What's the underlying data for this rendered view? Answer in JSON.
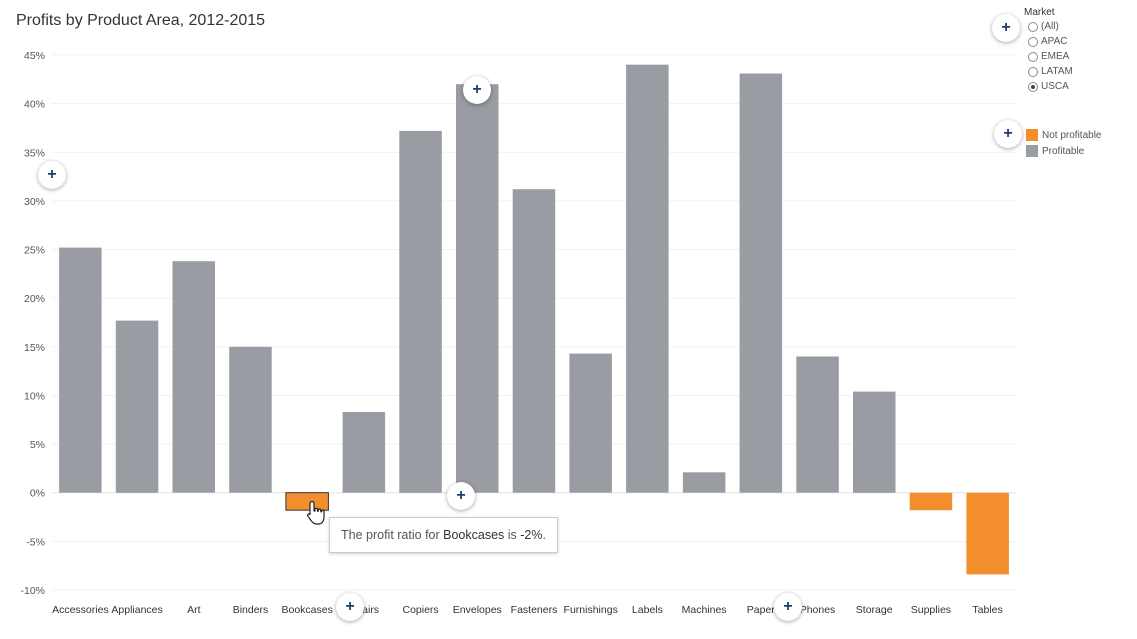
{
  "title": "Profits by Product Area, 2012-2015",
  "chart_data": {
    "type": "bar",
    "title": "Profits by Product Area, 2012-2015",
    "xlabel": "",
    "ylabel": "",
    "ylim": [
      -10,
      45
    ],
    "y_ticks": [
      45,
      40,
      35,
      30,
      25,
      20,
      15,
      10,
      5,
      0,
      -5,
      -10
    ],
    "y_tick_labels": [
      "45%",
      "40%",
      "35%",
      "30%",
      "25%",
      "20%",
      "15%",
      "10%",
      "5%",
      "0%",
      "-5%",
      "-10%"
    ],
    "grid": true,
    "legend_position": "top-right",
    "categories": [
      "Accessories",
      "Appliances",
      "Art",
      "Binders",
      "Bookcases",
      "Chairs",
      "Copiers",
      "Envelopes",
      "Fasteners",
      "Furnishings",
      "Labels",
      "Machines",
      "Paper",
      "Phones",
      "Storage",
      "Supplies",
      "Tables"
    ],
    "values": [
      25.2,
      17.7,
      23.8,
      15.0,
      -1.8,
      8.3,
      37.2,
      42.0,
      31.2,
      14.3,
      44.0,
      2.1,
      43.1,
      14.0,
      10.4,
      -1.8,
      -8.4
    ],
    "series": [
      {
        "name": "Not profitable",
        "color": "#f28e2b"
      },
      {
        "name": "Profitable",
        "color": "#9a9ca4"
      }
    ]
  },
  "filter": {
    "title": "Market",
    "options": [
      "(All)",
      "APAC",
      "EMEA",
      "LATAM",
      "USCA"
    ],
    "selected": "USCA"
  },
  "legend": {
    "items": [
      {
        "label": "Not profitable",
        "color": "#f28e2b"
      },
      {
        "label": "Profitable",
        "color": "#9a9ca4"
      }
    ]
  },
  "tooltip": {
    "prefix": "The profit ratio for ",
    "category": "Bookcases",
    "middle": " is ",
    "value": "-2%",
    "suffix": "."
  },
  "add_button_label": "+"
}
